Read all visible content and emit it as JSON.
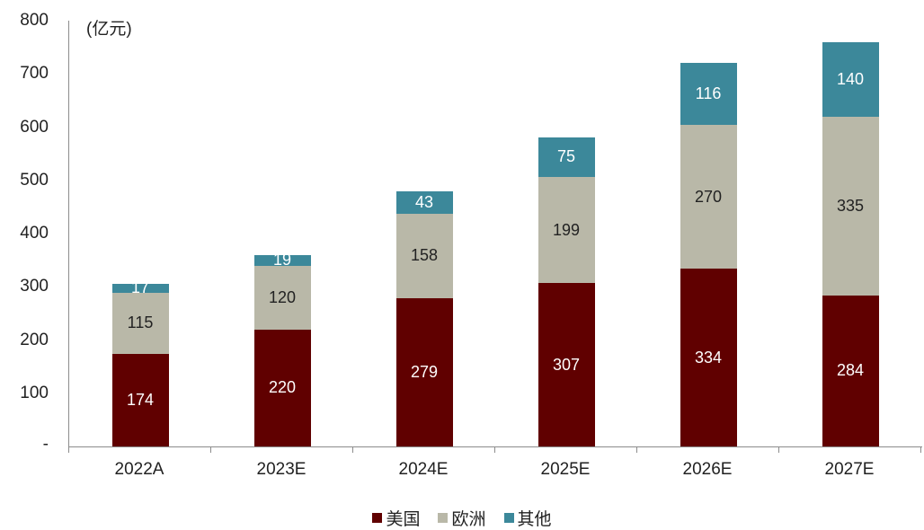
{
  "chart_data": {
    "type": "bar",
    "stacked": true,
    "title": "",
    "unit_label": "(亿元)",
    "xlabel": "",
    "ylabel": "",
    "ylim": [
      0,
      800
    ],
    "yticks": [
      0,
      100,
      200,
      300,
      400,
      500,
      600,
      700,
      800
    ],
    "ytick_labels": [
      "-",
      "100",
      "200",
      "300",
      "400",
      "500",
      "600",
      "700",
      "800"
    ],
    "grid": false,
    "legend_position": "bottom",
    "categories": [
      "2022A",
      "2023E",
      "2024E",
      "2025E",
      "2026E",
      "2027E"
    ],
    "series": [
      {
        "name": "美国",
        "color": "#600000",
        "label_color": "#ffffff",
        "values": [
          174,
          220,
          279,
          307,
          334,
          284
        ]
      },
      {
        "name": "欧洲",
        "color": "#B9B8A8",
        "label_color": "#222222",
        "values": [
          115,
          120,
          158,
          199,
          270,
          335
        ]
      },
      {
        "name": "其他",
        "color": "#3C889A",
        "label_color": "#ffffff",
        "values": [
          17,
          19,
          43,
          75,
          116,
          140
        ]
      }
    ]
  }
}
